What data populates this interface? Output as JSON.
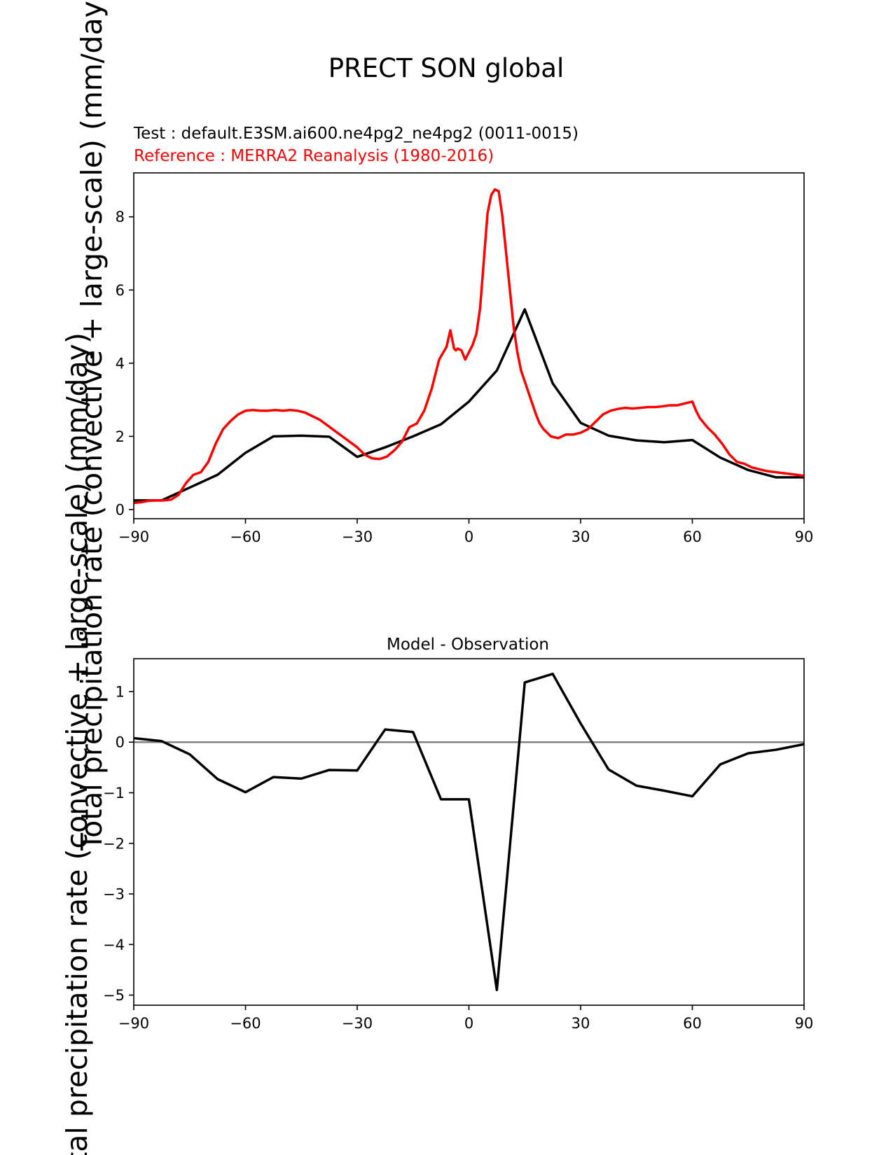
{
  "figure": {
    "suptitle": "PRECT SON global",
    "test_label": "Test : default.E3SM.ai600.ne4pg2_ne4pg2 (0011-0015)",
    "reference_label": "Reference : MERRA2 Reanalysis (1980-2016)",
    "colors": {
      "test": "#000000",
      "reference": "#ff0000",
      "zero_line": "#808080",
      "axes": "#000000"
    }
  },
  "chart_data": [
    {
      "type": "line",
      "title": "PRECT SON global",
      "xlabel": "",
      "ylabel": "Total precipitation rate (convective + large-scale) (mm/day)",
      "xlim": [
        -90,
        90
      ],
      "ylim": [
        -0.25,
        9.2
      ],
      "xticks": [
        -90,
        -60,
        -30,
        0,
        30,
        60,
        90
      ],
      "xtick_labels": [
        "−90",
        "−60",
        "−30",
        "0",
        "30",
        "60",
        "90"
      ],
      "yticks": [
        0,
        2,
        4,
        6,
        8
      ],
      "ytick_labels": [
        "0",
        "2",
        "4",
        "6",
        "8"
      ],
      "grid": false,
      "series": [
        {
          "name": "Test : default.E3SM.ai600.ne4pg2_ne4pg2 (0011-0015)",
          "color": "#000000",
          "x": [
            -90,
            -82.5,
            -75,
            -67.5,
            -60,
            -52.5,
            -45,
            -37.5,
            -30,
            -22.5,
            -15,
            -7.5,
            0,
            7.5,
            15,
            22.5,
            30,
            37.5,
            45,
            52.5,
            60,
            67.5,
            75,
            82.5,
            90
          ],
          "y": [
            0.25,
            0.25,
            0.6,
            0.95,
            1.55,
            2.0,
            2.02,
            1.99,
            1.44,
            1.7,
            2.0,
            2.33,
            2.95,
            3.8,
            5.47,
            3.45,
            2.37,
            2.02,
            1.89,
            1.84,
            1.9,
            1.42,
            1.08,
            0.88,
            0.88
          ]
        },
        {
          "name": "Reference : MERRA2 Reanalysis (1980-2016)",
          "color": "#ff0000",
          "x": [
            -90,
            -88,
            -86,
            -84,
            -82,
            -80,
            -78,
            -76,
            -74,
            -72,
            -70,
            -68,
            -66,
            -64,
            -62,
            -60,
            -58,
            -56,
            -54,
            -52,
            -50,
            -48,
            -46,
            -44,
            -42,
            -40,
            -38,
            -36,
            -34,
            -32,
            -30,
            -28,
            -26,
            -24,
            -22,
            -20,
            -18,
            -16,
            -14,
            -12,
            -10,
            -8,
            -6,
            -5,
            -4,
            -3.5,
            -3,
            -2,
            -1,
            0,
            1,
            2,
            3,
            4,
            5,
            6,
            7,
            8,
            9,
            10,
            11,
            12,
            13,
            14,
            15,
            16,
            17,
            18,
            19,
            20,
            21,
            22,
            24,
            26,
            28,
            30,
            32,
            34,
            36,
            38,
            40,
            42,
            44,
            46,
            48,
            50,
            52,
            54,
            56,
            58,
            60,
            61,
            62,
            64,
            66,
            68,
            70,
            72,
            74,
            76,
            78,
            80,
            84,
            88,
            90
          ],
          "y": [
            0.18,
            0.2,
            0.24,
            0.25,
            0.25,
            0.27,
            0.4,
            0.72,
            0.95,
            1.02,
            1.3,
            1.8,
            2.2,
            2.42,
            2.6,
            2.7,
            2.72,
            2.7,
            2.7,
            2.72,
            2.7,
            2.72,
            2.7,
            2.65,
            2.55,
            2.45,
            2.3,
            2.15,
            2.0,
            1.85,
            1.7,
            1.5,
            1.4,
            1.38,
            1.45,
            1.62,
            1.85,
            2.25,
            2.35,
            2.7,
            3.3,
            4.1,
            4.45,
            4.9,
            4.4,
            4.35,
            4.4,
            4.35,
            4.1,
            4.3,
            4.5,
            4.8,
            5.5,
            6.8,
            8.1,
            8.6,
            8.75,
            8.7,
            8.0,
            7.0,
            6.0,
            5.0,
            4.3,
            3.8,
            3.5,
            3.2,
            2.9,
            2.6,
            2.35,
            2.2,
            2.1,
            2.0,
            1.95,
            2.05,
            2.05,
            2.1,
            2.2,
            2.4,
            2.6,
            2.7,
            2.75,
            2.78,
            2.76,
            2.78,
            2.8,
            2.8,
            2.82,
            2.85,
            2.85,
            2.9,
            2.95,
            2.7,
            2.5,
            2.25,
            2.05,
            1.8,
            1.5,
            1.3,
            1.25,
            1.15,
            1.1,
            1.05,
            1.0,
            0.95,
            0.92
          ]
        }
      ]
    },
    {
      "type": "line",
      "title": "Model - Observation",
      "xlabel": "",
      "ylabel": "Total precipitation rate (convective + large-scale) (mm/day)",
      "xlim": [
        -90,
        90
      ],
      "ylim": [
        -5.2,
        1.65
      ],
      "xticks": [
        -90,
        -60,
        -30,
        0,
        30,
        60,
        90
      ],
      "xtick_labels": [
        "−90",
        "−60",
        "−30",
        "0",
        "30",
        "60",
        "90"
      ],
      "yticks": [
        1,
        0,
        -1,
        -2,
        -3,
        -4,
        -5
      ],
      "ytick_labels": [
        "1",
        "0",
        "−1",
        "−2",
        "−3",
        "−4",
        "−5"
      ],
      "grid": false,
      "zero_line": 0,
      "series": [
        {
          "name": "Model - Observation",
          "color": "#000000",
          "x": [
            -90,
            -82.5,
            -75,
            -67.5,
            -60,
            -52.5,
            -45,
            -37.5,
            -30,
            -22.5,
            -15,
            -7.5,
            0,
            7.5,
            15,
            22.5,
            30,
            37.5,
            45,
            52.5,
            60,
            67.5,
            75,
            82.5,
            90
          ],
          "y": [
            0.08,
            0.02,
            -0.24,
            -0.73,
            -0.99,
            -0.69,
            -0.72,
            -0.55,
            -0.56,
            0.25,
            0.2,
            -1.13,
            -1.13,
            -4.9,
            1.18,
            1.35,
            0.37,
            -0.54,
            -0.86,
            -0.96,
            -1.07,
            -0.44,
            -0.22,
            -0.15,
            -0.04
          ]
        }
      ]
    }
  ]
}
